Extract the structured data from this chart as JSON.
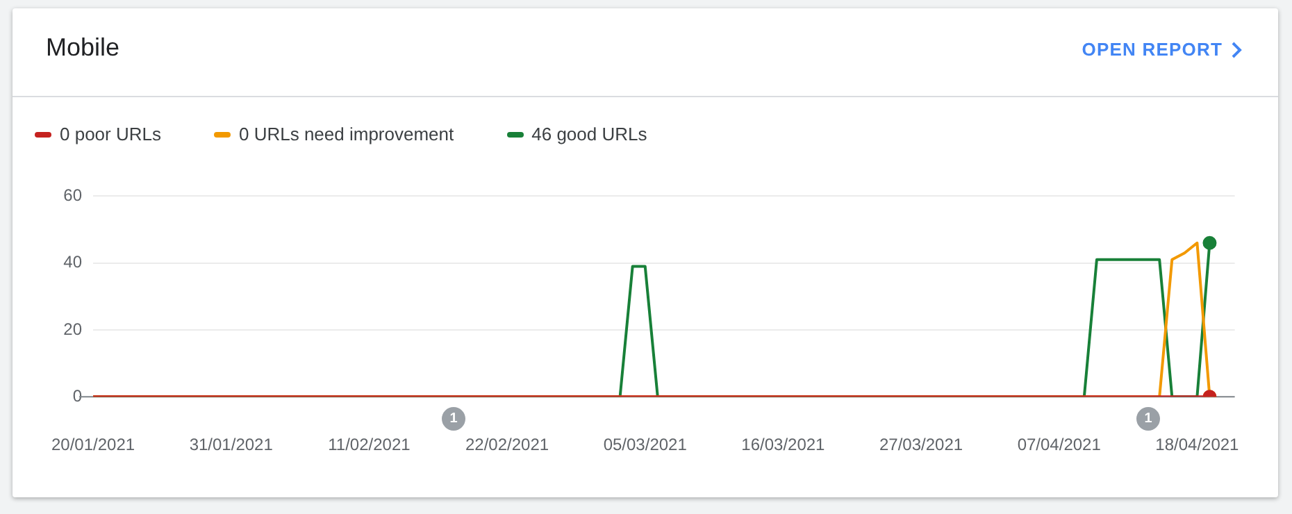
{
  "chart_data": {
    "type": "line",
    "title": "Mobile",
    "series": [
      {
        "name": "0 poor URLs",
        "color": "#c5221f",
        "x": [
          "2021-01-20",
          "2021-04-19"
        ],
        "values": [
          0,
          0
        ]
      },
      {
        "name": "0 URLs need improvement",
        "color": "#f29900",
        "x": [
          "2021-01-20",
          "2021-04-15",
          "2021-04-16",
          "2021-04-17",
          "2021-04-18",
          "2021-04-19"
        ],
        "values": [
          0,
          0,
          41,
          43,
          46,
          0
        ]
      },
      {
        "name": "46 good URLs",
        "color": "#188038",
        "x": [
          "2021-01-20",
          "2021-03-03",
          "2021-03-04",
          "2021-03-05",
          "2021-03-06",
          "2021-04-09",
          "2021-04-10",
          "2021-04-15",
          "2021-04-16",
          "2021-04-18",
          "2021-04-19"
        ],
        "values": [
          0,
          0,
          39,
          39,
          0,
          0,
          41,
          41,
          0,
          0,
          46
        ]
      }
    ],
    "xlim": [
      "2021-01-20",
      "2021-04-21"
    ],
    "xticks": [
      {
        "value": "2021-01-20",
        "label": "20/01/2021"
      },
      {
        "value": "2021-01-31",
        "label": "31/01/2021"
      },
      {
        "value": "2021-02-11",
        "label": "11/02/2021"
      },
      {
        "value": "2021-02-22",
        "label": "22/02/2021"
      },
      {
        "value": "2021-03-05",
        "label": "05/03/2021"
      },
      {
        "value": "2021-03-16",
        "label": "16/03/2021"
      },
      {
        "value": "2021-03-27",
        "label": "27/03/2021"
      },
      {
        "value": "2021-04-07",
        "label": "07/04/2021"
      },
      {
        "value": "2021-04-18",
        "label": "18/04/2021"
      }
    ],
    "ylim": [
      0,
      60
    ],
    "yticks": [
      0,
      20,
      40,
      60
    ],
    "grid": "y",
    "legend": "top left",
    "line_style": "solid",
    "annotations": [
      "OPEN REPORT",
      "1",
      "1"
    ]
  }
}
